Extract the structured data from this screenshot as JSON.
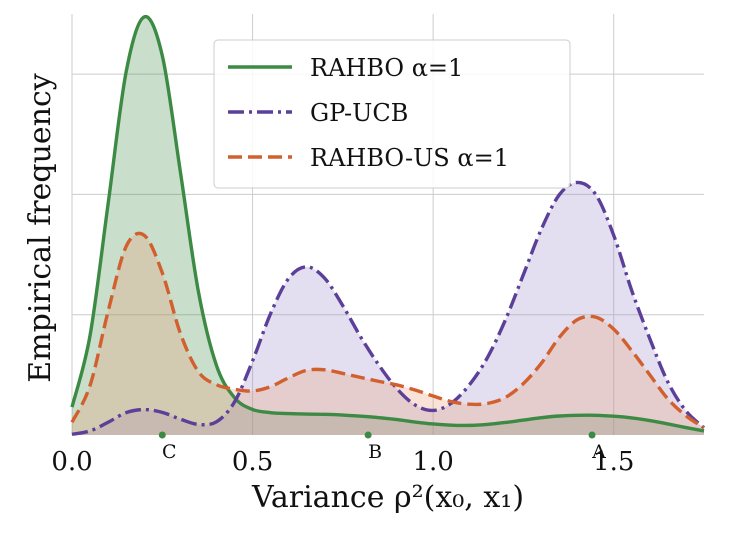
{
  "chart_data": {
    "type": "area",
    "xlabel": "Variance ρ²(x₀, x₁)",
    "ylabel": "Empirical frequency",
    "xlim": [
      0.0,
      1.75
    ],
    "ylim": [
      0,
      0.175
    ],
    "x_ticks": [
      0.0,
      0.5,
      1.0,
      1.5
    ],
    "x_tick_labels": [
      "0.0",
      "0.5",
      "1.0",
      "1.5"
    ],
    "y_gridlines": [
      0.05,
      0.1,
      0.15
    ],
    "grid": true,
    "legend_position": "top-center",
    "series": [
      {
        "name": "RAHBO α=1",
        "color": "#3d8a45",
        "fill": "#3d8a45",
        "line_style": "solid",
        "x": [
          0.0,
          0.05,
          0.1,
          0.15,
          0.2,
          0.25,
          0.3,
          0.35,
          0.4,
          0.45,
          0.5,
          0.55,
          0.6,
          0.65,
          0.7,
          0.75,
          0.8,
          0.85,
          0.9,
          0.95,
          1.0,
          1.05,
          1.1,
          1.15,
          1.2,
          1.25,
          1.3,
          1.35,
          1.4,
          1.45,
          1.5,
          1.55,
          1.6,
          1.65,
          1.7,
          1.75
        ],
        "y": [
          0.0116,
          0.0414,
          0.0961,
          0.151,
          0.1738,
          0.1577,
          0.1095,
          0.0596,
          0.0289,
          0.0155,
          0.0106,
          0.0093,
          0.0089,
          0.0087,
          0.0086,
          0.0083,
          0.0078,
          0.0072,
          0.0064,
          0.0054,
          0.0046,
          0.0041,
          0.004,
          0.0044,
          0.0052,
          0.0062,
          0.0072,
          0.0079,
          0.0082,
          0.0082,
          0.0078,
          0.0071,
          0.006,
          0.0046,
          0.0031,
          0.0017
        ]
      },
      {
        "name": "GP-UCB",
        "color": "#5b3f98",
        "fill": "#9a8cc8",
        "line_style": "dashdot",
        "x": [
          0.0,
          0.05,
          0.1,
          0.15,
          0.2,
          0.25,
          0.3,
          0.35,
          0.4,
          0.45,
          0.5,
          0.55,
          0.6,
          0.65,
          0.7,
          0.75,
          0.8,
          0.85,
          0.9,
          0.95,
          1.0,
          1.05,
          1.1,
          1.15,
          1.2,
          1.25,
          1.3,
          1.35,
          1.4,
          1.45,
          1.5,
          1.55,
          1.6,
          1.65,
          1.7,
          1.75
        ],
        "y": [
          0.0003,
          0.0017,
          0.0053,
          0.0093,
          0.0106,
          0.0094,
          0.0066,
          0.0044,
          0.0055,
          0.0137,
          0.0308,
          0.0505,
          0.0651,
          0.0699,
          0.0651,
          0.0537,
          0.0406,
          0.029,
          0.0192,
          0.0125,
          0.0102,
          0.0132,
          0.0208,
          0.0321,
          0.0478,
          0.0667,
          0.0857,
          0.1,
          0.105,
          0.1,
          0.083,
          0.06,
          0.04,
          0.022,
          0.01,
          0.003
        ]
      },
      {
        "name": "RAHBO-US α=1",
        "color": "#d2602e",
        "fill": "#e99a72",
        "line_style": "dashed",
        "x": [
          0.0,
          0.05,
          0.1,
          0.15,
          0.2,
          0.25,
          0.3,
          0.35,
          0.4,
          0.45,
          0.5,
          0.55,
          0.6,
          0.65,
          0.7,
          0.75,
          0.8,
          0.85,
          0.9,
          0.95,
          1.0,
          1.05,
          1.1,
          1.15,
          1.2,
          1.25,
          1.3,
          1.35,
          1.4,
          1.45,
          1.5,
          1.55,
          1.6,
          1.65,
          1.7,
          1.75
        ],
        "y": [
          0.0053,
          0.0206,
          0.0514,
          0.0784,
          0.083,
          0.0674,
          0.0423,
          0.0263,
          0.0209,
          0.019,
          0.0183,
          0.0201,
          0.0238,
          0.0269,
          0.0271,
          0.0256,
          0.0239,
          0.0223,
          0.0208,
          0.0187,
          0.0162,
          0.0139,
          0.0128,
          0.0131,
          0.0156,
          0.0214,
          0.0299,
          0.0407,
          0.048,
          0.049,
          0.044,
          0.035,
          0.025,
          0.015,
          0.008,
          0.003
        ]
      }
    ],
    "annotations": [
      {
        "label": "C",
        "x": 0.25
      },
      {
        "label": "B",
        "x": 0.82
      },
      {
        "label": "A",
        "x": 1.44
      }
    ]
  }
}
